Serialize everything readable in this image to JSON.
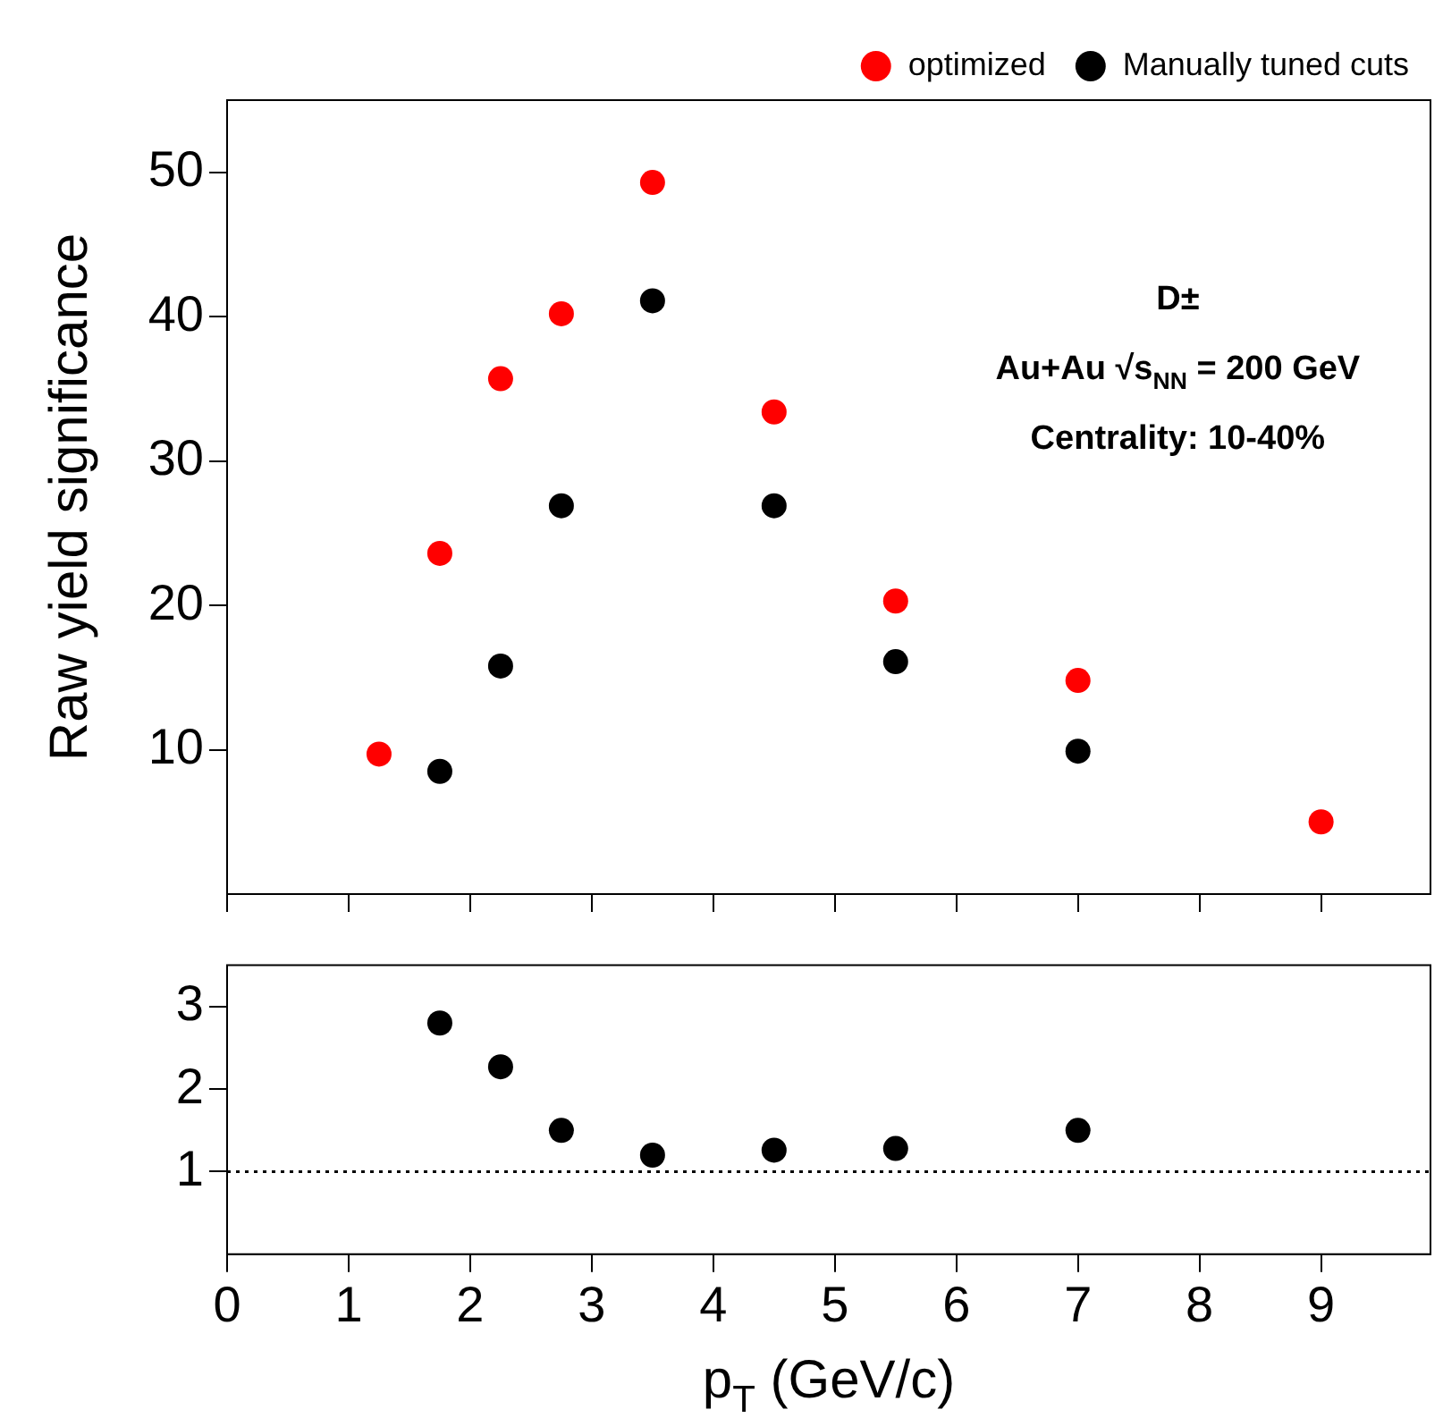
{
  "chart_data": [
    {
      "type": "scatter",
      "ylabel": "Raw yield significance",
      "xlim": [
        0,
        9.9
      ],
      "xticks": [
        0,
        1,
        2,
        3,
        4,
        5,
        6,
        7,
        8,
        9
      ],
      "ylim": [
        0,
        55
      ],
      "yticks": [
        10,
        20,
        30,
        40,
        50
      ],
      "tick_labels": "y",
      "legend": "top right",
      "marker": "circle",
      "grid": false,
      "annotations": [
        "D±",
        "Au+Au √s$_{NN}$ = 200 GeV",
        "Centrality: 10-40%"
      ],
      "series": [
        {
          "name": "optimized",
          "color": "#ff0000",
          "x": [
            1.25,
            1.75,
            2.25,
            2.75,
            3.5,
            4.5,
            5.5,
            7,
            9
          ],
          "values": [
            9.7,
            23.6,
            35.7,
            40.2,
            49.3,
            33.4,
            20.3,
            14.8,
            5.0
          ]
        },
        {
          "name": "Manually tuned cuts",
          "color": "#000000",
          "x": [
            1.75,
            2.25,
            2.75,
            3.5,
            4.5,
            5.5,
            7
          ],
          "values": [
            8.5,
            15.8,
            26.9,
            41.1,
            26.9,
            16.1,
            9.9
          ]
        }
      ]
    },
    {
      "type": "scatter",
      "xlabel": "p$_{T}$ (GeV/c)",
      "xlim": [
        0,
        9.9
      ],
      "xticks": [
        0,
        1,
        2,
        3,
        4,
        5,
        6,
        7,
        8,
        9
      ],
      "ylim": [
        0,
        3.5
      ],
      "yticks": [
        1,
        2,
        3
      ],
      "marker": "circle",
      "grid": false,
      "ref_lines": [
        {
          "axis": "y",
          "value": 1,
          "color": "#000000",
          "line_style": "dotted"
        }
      ],
      "series": [
        {
          "color": "#000000",
          "x": [
            1.75,
            2.25,
            2.75,
            3.5,
            4.5,
            5.5,
            7
          ],
          "values": [
            2.8,
            2.27,
            1.5,
            1.2,
            1.26,
            1.28,
            1.5
          ]
        }
      ]
    }
  ]
}
